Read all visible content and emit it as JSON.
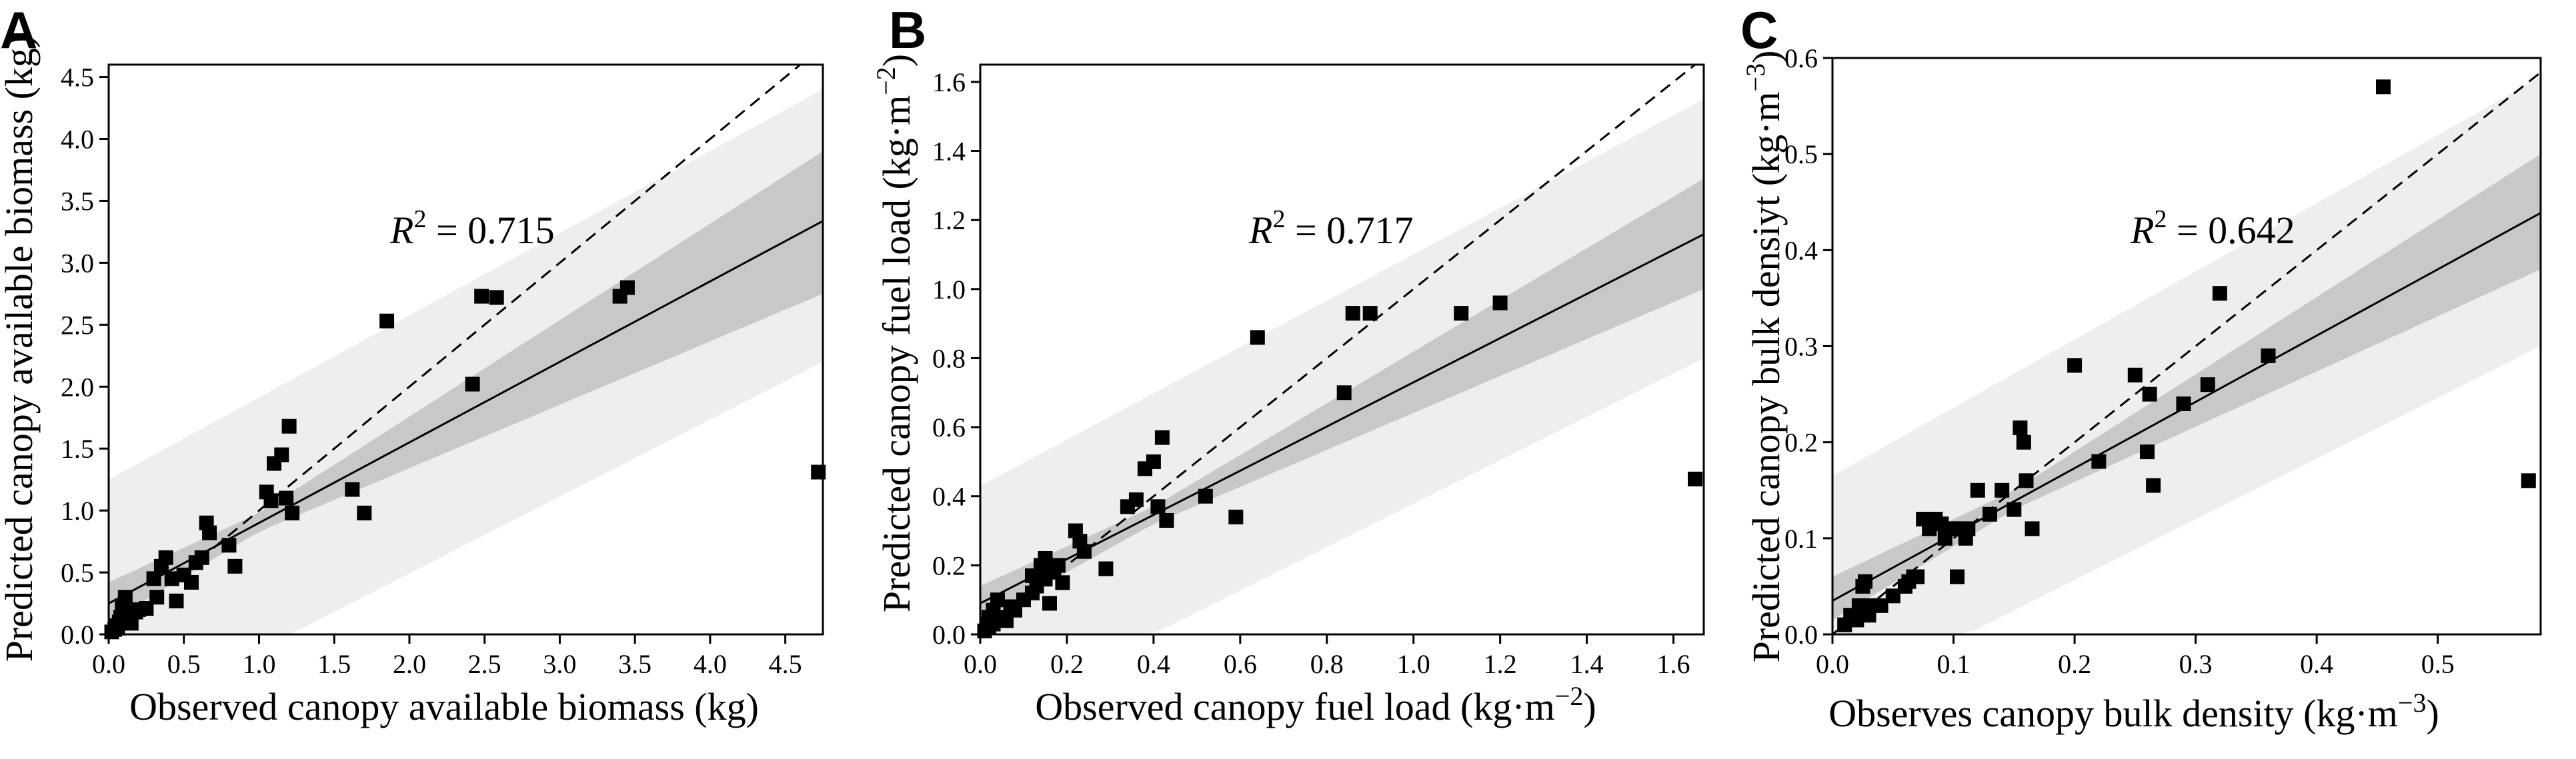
{
  "figure": {
    "colors": {
      "points": "#000000",
      "fit_line": "#000000",
      "one_to_one": "#000000",
      "confidence_band": "#c8c8c8",
      "prediction_band": "#eeeeee"
    }
  },
  "chart_data": [
    {
      "type": "scatter",
      "panel": "A",
      "xlabel": "Observed canopy available biomass (kg)",
      "ylabel": "Predicted canopy available biomass (kg)",
      "r2_symbol": "R",
      "r2_sup": "2",
      "r2_value": " = 0.715",
      "xlim": [
        0,
        4.75
      ],
      "ylim": [
        0,
        4.6
      ],
      "xticks": [
        0.0,
        0.5,
        1.0,
        1.5,
        2.0,
        2.5,
        3.0,
        3.5,
        4.0,
        4.5
      ],
      "xtick_labels": [
        "0.0",
        "0.5",
        "1.0",
        "1.5",
        "2.0",
        "2.5",
        "3.0",
        "3.5",
        "4.0",
        "4.5"
      ],
      "yticks": [
        0.0,
        0.5,
        1.0,
        1.5,
        2.0,
        2.5,
        3.0,
        3.5,
        4.0,
        4.5
      ],
      "ytick_labels": [
        "0.0",
        "0.5",
        "1.0",
        "1.5",
        "2.0",
        "2.5",
        "3.0",
        "3.5",
        "4.0",
        "4.5"
      ],
      "fit": {
        "intercept": 0.25,
        "slope": 0.65
      },
      "confidence_band": {
        "lower": [
          [
            0,
            0.1
          ],
          [
            1.0,
            0.83
          ],
          [
            4.75,
            2.75
          ]
        ],
        "upper": [
          [
            0,
            0.42
          ],
          [
            1.0,
            0.98
          ],
          [
            4.75,
            3.9
          ]
        ]
      },
      "prediction_band": {
        "lower": [
          [
            0,
            -0.75
          ],
          [
            4.75,
            2.2
          ]
        ],
        "upper": [
          [
            0,
            1.25
          ],
          [
            4.75,
            4.4
          ]
        ]
      },
      "points": [
        [
          0.02,
          0.02
        ],
        [
          0.04,
          0.04
        ],
        [
          0.05,
          0.07
        ],
        [
          0.06,
          0.05
        ],
        [
          0.07,
          0.1
        ],
        [
          0.08,
          0.14
        ],
        [
          0.09,
          0.22
        ],
        [
          0.1,
          0.12
        ],
        [
          0.11,
          0.3
        ],
        [
          0.12,
          0.16
        ],
        [
          0.15,
          0.09
        ],
        [
          0.18,
          0.18
        ],
        [
          0.2,
          0.2
        ],
        [
          0.25,
          0.21
        ],
        [
          0.3,
          0.45
        ],
        [
          0.32,
          0.3
        ],
        [
          0.35,
          0.55
        ],
        [
          0.38,
          0.62
        ],
        [
          0.42,
          0.45
        ],
        [
          0.45,
          0.27
        ],
        [
          0.5,
          0.48
        ],
        [
          0.55,
          0.42
        ],
        [
          0.58,
          0.58
        ],
        [
          0.62,
          0.62
        ],
        [
          0.65,
          0.9
        ],
        [
          0.67,
          0.82
        ],
        [
          0.8,
          0.72
        ],
        [
          0.84,
          0.55
        ],
        [
          1.05,
          1.15
        ],
        [
          1.08,
          1.08
        ],
        [
          1.1,
          1.38
        ],
        [
          1.15,
          1.45
        ],
        [
          1.18,
          1.1
        ],
        [
          1.2,
          1.68
        ],
        [
          1.22,
          0.98
        ],
        [
          1.62,
          1.17
        ],
        [
          1.7,
          0.98
        ],
        [
          1.85,
          2.53
        ],
        [
          2.42,
          2.02
        ],
        [
          2.48,
          2.73
        ],
        [
          2.58,
          2.72
        ],
        [
          3.4,
          2.73
        ],
        [
          3.45,
          2.8
        ],
        [
          4.72,
          1.31
        ]
      ]
    },
    {
      "type": "scatter",
      "panel": "B",
      "xlabel": "Observed canopy fuel load (kg·m",
      "xlabel_sup": "−2",
      "xlabel_end": ")",
      "ylabel": "Predicted canopy fuel load (kg·m",
      "ylabel_sup": "−2",
      "ylabel_end": ")",
      "r2_symbol": "R",
      "r2_sup": "2",
      "r2_value": " = 0.717",
      "xlim": [
        0,
        1.67
      ],
      "ylim": [
        0,
        1.65
      ],
      "xticks": [
        0.0,
        0.2,
        0.4,
        0.6,
        0.8,
        1.0,
        1.2,
        1.4,
        1.6
      ],
      "xtick_labels": [
        "0.0",
        "0.2",
        "0.4",
        "0.6",
        "0.8",
        "1.0",
        "1.2",
        "1.4",
        "1.6"
      ],
      "yticks": [
        0.0,
        0.2,
        0.4,
        0.6,
        0.8,
        1.0,
        1.2,
        1.4,
        1.6
      ],
      "ytick_labels": [
        "0.0",
        "0.2",
        "0.4",
        "0.6",
        "0.8",
        "1.0",
        "1.2",
        "1.4",
        "1.6"
      ],
      "fit": {
        "intercept": 0.09,
        "slope": 0.64
      },
      "confidence_band": {
        "lower": [
          [
            0,
            0.04
          ],
          [
            0.4,
            0.32
          ],
          [
            1.67,
            1.0
          ]
        ],
        "upper": [
          [
            0,
            0.14
          ],
          [
            0.4,
            0.37
          ],
          [
            1.67,
            1.32
          ]
        ]
      },
      "prediction_band": {
        "lower": [
          [
            0,
            -0.25
          ],
          [
            1.67,
            0.8
          ]
        ],
        "upper": [
          [
            0,
            0.43
          ],
          [
            1.67,
            1.55
          ]
        ]
      },
      "points": [
        [
          0.01,
          0.01
        ],
        [
          0.015,
          0.03
        ],
        [
          0.02,
          0.02
        ],
        [
          0.02,
          0.05
        ],
        [
          0.03,
          0.03
        ],
        [
          0.03,
          0.07
        ],
        [
          0.04,
          0.1
        ],
        [
          0.05,
          0.05
        ],
        [
          0.06,
          0.04
        ],
        [
          0.07,
          0.08
        ],
        [
          0.08,
          0.07
        ],
        [
          0.1,
          0.1
        ],
        [
          0.12,
          0.17
        ],
        [
          0.12,
          0.12
        ],
        [
          0.13,
          0.14
        ],
        [
          0.14,
          0.2
        ],
        [
          0.15,
          0.16
        ],
        [
          0.15,
          0.22
        ],
        [
          0.16,
          0.09
        ],
        [
          0.17,
          0.18
        ],
        [
          0.18,
          0.2
        ],
        [
          0.19,
          0.15
        ],
        [
          0.22,
          0.3
        ],
        [
          0.23,
          0.27
        ],
        [
          0.24,
          0.24
        ],
        [
          0.29,
          0.19
        ],
        [
          0.34,
          0.37
        ],
        [
          0.36,
          0.39
        ],
        [
          0.38,
          0.48
        ],
        [
          0.4,
          0.5
        ],
        [
          0.41,
          0.37
        ],
        [
          0.42,
          0.57
        ],
        [
          0.43,
          0.33
        ],
        [
          0.52,
          0.4
        ],
        [
          0.59,
          0.34
        ],
        [
          0.64,
          0.86
        ],
        [
          0.84,
          0.7
        ],
        [
          0.86,
          0.93
        ],
        [
          0.9,
          0.93
        ],
        [
          1.11,
          0.93
        ],
        [
          1.2,
          0.96
        ],
        [
          1.65,
          0.45
        ]
      ]
    },
    {
      "type": "scatter",
      "panel": "C",
      "xlabel": "Observes canopy bulk density (kg·m",
      "xlabel_sup": "−3",
      "xlabel_end": ")",
      "ylabel": "Predicted canopy bulk densiyt (kg·m",
      "ylabel_sup": "−3",
      "ylabel_end": ")",
      "r2_symbol": "R",
      "r2_sup": "2",
      "r2_value": " = 0.642",
      "xlim": [
        0,
        0.585
      ],
      "ylim": [
        0,
        0.6
      ],
      "xticks": [
        0.0,
        0.1,
        0.2,
        0.3,
        0.4,
        0.5
      ],
      "xtick_labels": [
        "0.0",
        "0.1",
        "0.2",
        "0.3",
        "0.4",
        "0.5"
      ],
      "yticks": [
        0.0,
        0.1,
        0.2,
        0.3,
        0.4,
        0.5,
        0.6
      ],
      "ytick_labels": [
        "0.0",
        "0.1",
        "0.2",
        "0.3",
        "0.4",
        "0.5",
        "0.6"
      ],
      "fit": {
        "intercept": 0.035,
        "slope": 0.69
      },
      "confidence_band": {
        "lower": [
          [
            0,
            0.015
          ],
          [
            0.15,
            0.13
          ],
          [
            0.585,
            0.38
          ]
        ],
        "upper": [
          [
            0,
            0.06
          ],
          [
            0.15,
            0.15
          ],
          [
            0.585,
            0.5
          ]
        ]
      },
      "prediction_band": {
        "lower": [
          [
            0,
            -0.07
          ],
          [
            0.585,
            0.3
          ]
        ],
        "upper": [
          [
            0,
            0.165
          ],
          [
            0.585,
            0.58
          ]
        ]
      },
      "points": [
        [
          0.01,
          0.01
        ],
        [
          0.015,
          0.02
        ],
        [
          0.02,
          0.015
        ],
        [
          0.022,
          0.03
        ],
        [
          0.025,
          0.05
        ],
        [
          0.027,
          0.055
        ],
        [
          0.03,
          0.02
        ],
        [
          0.032,
          0.03
        ],
        [
          0.04,
          0.03
        ],
        [
          0.05,
          0.04
        ],
        [
          0.06,
          0.05
        ],
        [
          0.063,
          0.055
        ],
        [
          0.067,
          0.06
        ],
        [
          0.07,
          0.06
        ],
        [
          0.075,
          0.12
        ],
        [
          0.08,
          0.11
        ],
        [
          0.085,
          0.12
        ],
        [
          0.09,
          0.115
        ],
        [
          0.093,
          0.1
        ],
        [
          0.1,
          0.11
        ],
        [
          0.103,
          0.06
        ],
        [
          0.105,
          0.11
        ],
        [
          0.11,
          0.1
        ],
        [
          0.112,
          0.11
        ],
        [
          0.12,
          0.15
        ],
        [
          0.13,
          0.125
        ],
        [
          0.14,
          0.15
        ],
        [
          0.15,
          0.13
        ],
        [
          0.155,
          0.215
        ],
        [
          0.158,
          0.2
        ],
        [
          0.16,
          0.16
        ],
        [
          0.165,
          0.11
        ],
        [
          0.2,
          0.28
        ],
        [
          0.22,
          0.18
        ],
        [
          0.25,
          0.27
        ],
        [
          0.26,
          0.19
        ],
        [
          0.262,
          0.25
        ],
        [
          0.265,
          0.155
        ],
        [
          0.29,
          0.24
        ],
        [
          0.31,
          0.26
        ],
        [
          0.32,
          0.355
        ],
        [
          0.36,
          0.29
        ],
        [
          0.455,
          0.57
        ],
        [
          0.575,
          0.16
        ]
      ]
    }
  ]
}
